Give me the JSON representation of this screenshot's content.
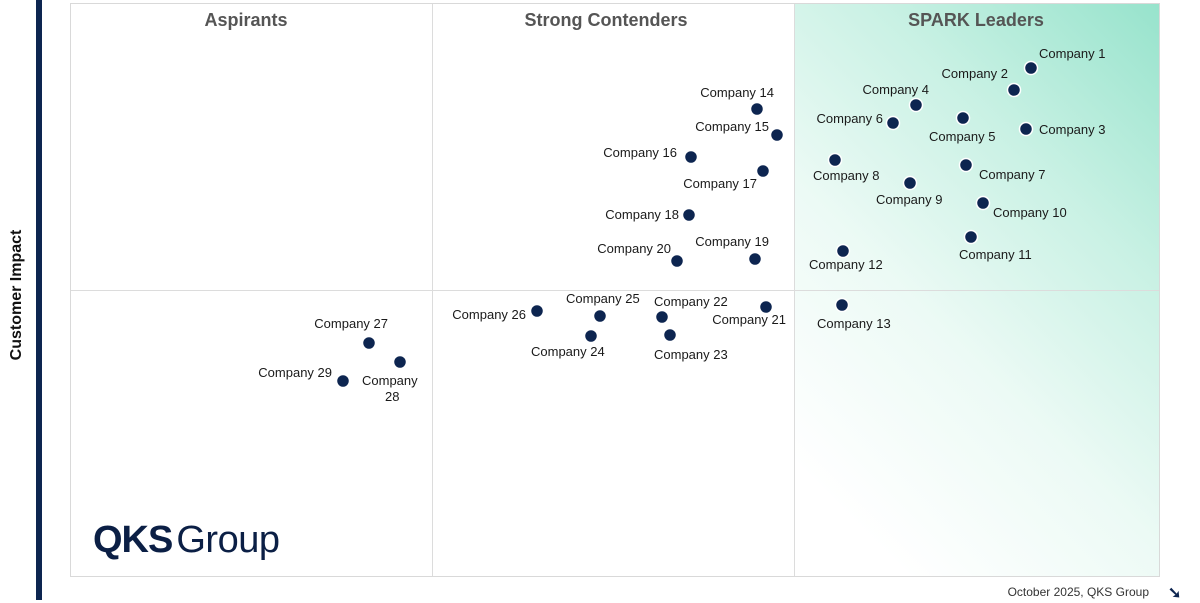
{
  "chart_data": {
    "type": "scatter",
    "title": "",
    "xlabel": "",
    "ylabel": "Customer Impact",
    "quadrants": [
      "Aspirants",
      "Strong Contenders",
      "SPARK Leaders"
    ],
    "points": [
      {
        "label": "Company 1",
        "x": 1031,
        "y": 68
      },
      {
        "label": "Company 2",
        "x": 1014,
        "y": 90
      },
      {
        "label": "Company 3",
        "x": 1026,
        "y": 129
      },
      {
        "label": "Company 4",
        "x": 916,
        "y": 105
      },
      {
        "label": "Company 5",
        "x": 963,
        "y": 118
      },
      {
        "label": "Company 6",
        "x": 893,
        "y": 123
      },
      {
        "label": "Company 7",
        "x": 966,
        "y": 165
      },
      {
        "label": "Company 8",
        "x": 835,
        "y": 160
      },
      {
        "label": "Company 9",
        "x": 910,
        "y": 183
      },
      {
        "label": "Company 10",
        "x": 983,
        "y": 203
      },
      {
        "label": "Company 11",
        "x": 971,
        "y": 237
      },
      {
        "label": "Company 12",
        "x": 843,
        "y": 251
      },
      {
        "label": "Company 13",
        "x": 842,
        "y": 305
      },
      {
        "label": "Company 14",
        "x": 757,
        "y": 109
      },
      {
        "label": "Company 15",
        "x": 777,
        "y": 135
      },
      {
        "label": "Company 16",
        "x": 691,
        "y": 157
      },
      {
        "label": "Company 17",
        "x": 763,
        "y": 171
      },
      {
        "label": "Company 18",
        "x": 689,
        "y": 215
      },
      {
        "label": "Company 19",
        "x": 755,
        "y": 259
      },
      {
        "label": "Company 20",
        "x": 677,
        "y": 261
      },
      {
        "label": "Company 21",
        "x": 766,
        "y": 307
      },
      {
        "label": "Company 22",
        "x": 662,
        "y": 317
      },
      {
        "label": "Company 23",
        "x": 670,
        "y": 335
      },
      {
        "label": "Company 24",
        "x": 591,
        "y": 336
      },
      {
        "label": "Company 25",
        "x": 600,
        "y": 316
      },
      {
        "label": "Company 26",
        "x": 537,
        "y": 311
      },
      {
        "label": "Company 27",
        "x": 369,
        "y": 343
      },
      {
        "label": "Company 28",
        "x": 400,
        "y": 362
      },
      {
        "label": "Company 29",
        "x": 343,
        "y": 381
      }
    ],
    "xlim": [
      70,
      1160
    ],
    "ylim": [
      3,
      577
    ],
    "point_color": "#0d2550",
    "leaders_gradient_color": "#97e3cc",
    "grid": false
  },
  "logo": {
    "part1": "QKS",
    "part2": "Group"
  },
  "footer": "October 2025, QKS Group"
}
